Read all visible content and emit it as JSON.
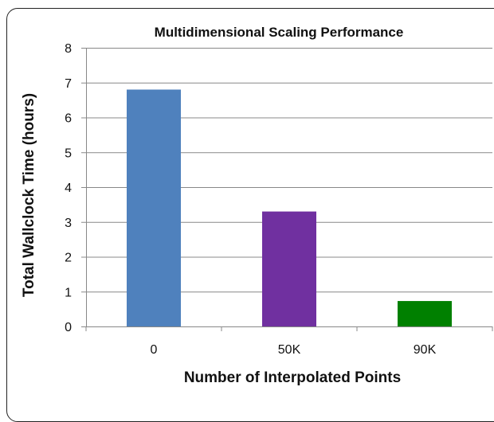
{
  "chart_data": {
    "type": "bar",
    "title": "Multidimensional Scaling Performance",
    "xlabel": "Number of Interpolated Points",
    "ylabel": "Total Wallclock Time (hours)",
    "categories": [
      "0",
      "50K",
      "90K"
    ],
    "values": [
      6.8,
      3.3,
      0.73
    ],
    "colors": [
      "#4f81bd",
      "#7030a0",
      "#008000"
    ],
    "ylim": [
      0,
      8
    ],
    "yticks": [
      "0",
      "1",
      "2",
      "3",
      "4",
      "5",
      "6",
      "7",
      "8"
    ],
    "grid": true
  }
}
